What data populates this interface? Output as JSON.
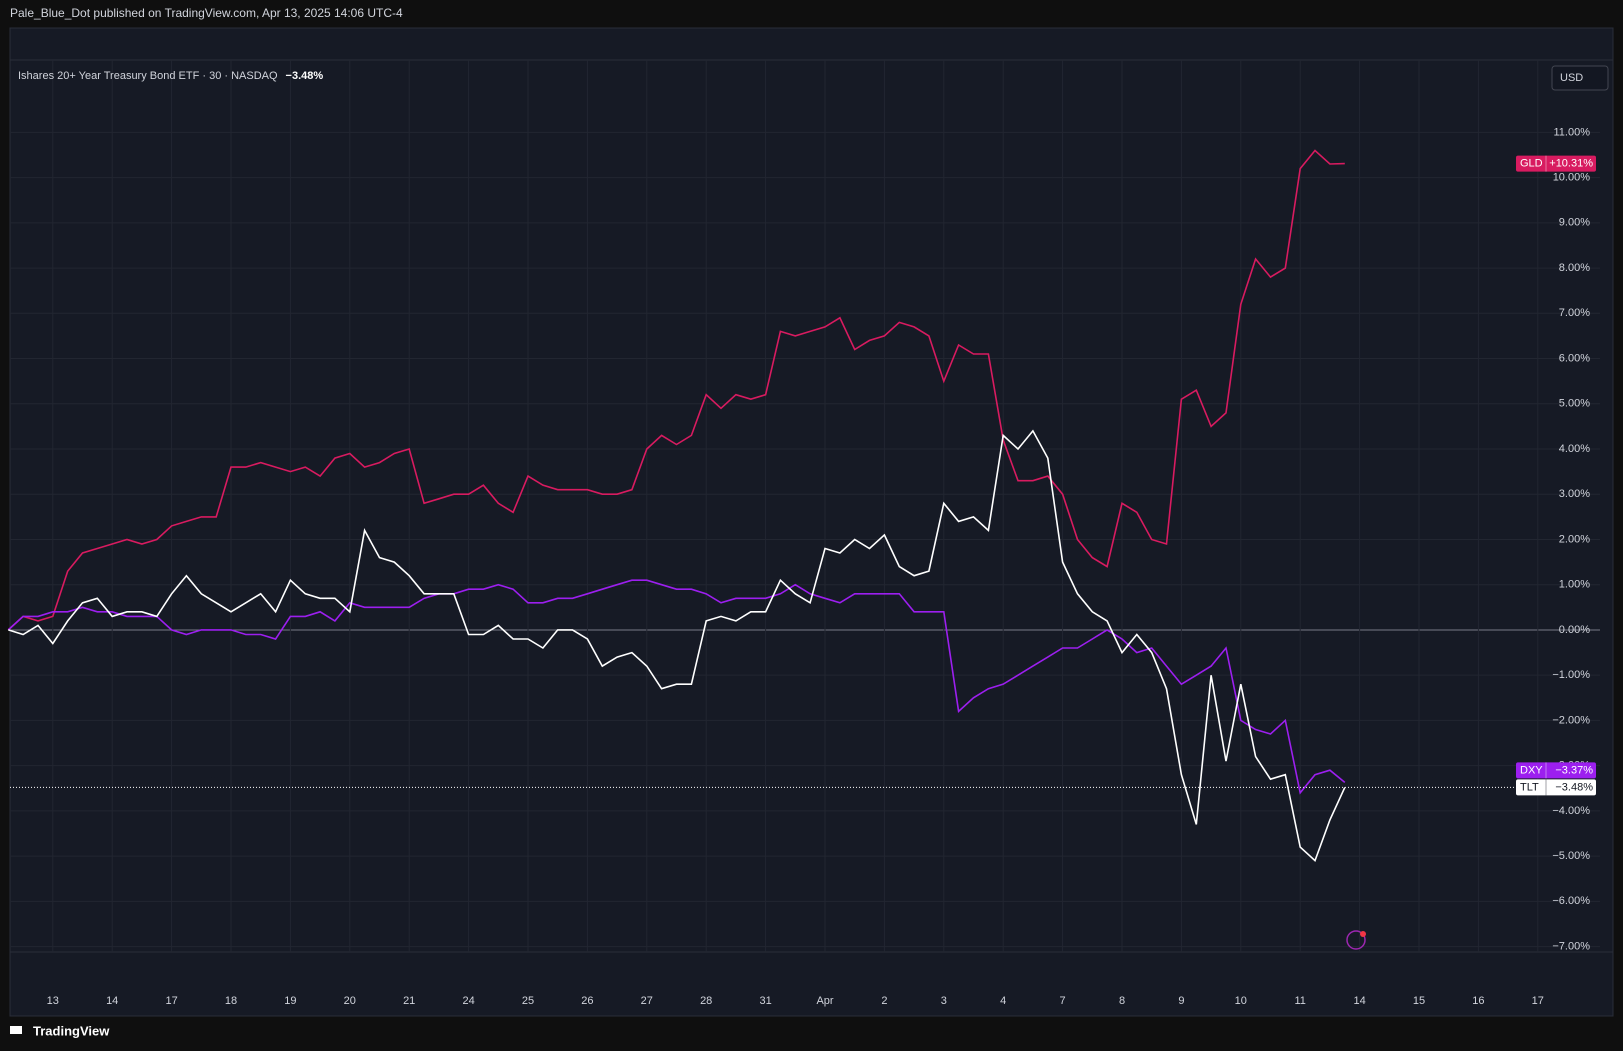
{
  "header": {
    "publisher": "Pale_Blue_Dot published on TradingView.com, Apr 13, 2025 14:06 UTC-4",
    "brand": "TradingView"
  },
  "chart_data": {
    "type": "line",
    "title": "Ishares 20+ Year Treasury Bond ETF · 30 · NASDAQ",
    "title_change": "−3.48%",
    "currency": "USD",
    "categories": [
      null,
      null,
      null,
      "13",
      null,
      null,
      null,
      "14",
      null,
      null,
      null,
      "17",
      null,
      null,
      null,
      "18",
      null,
      null,
      null,
      "19",
      null,
      null,
      null,
      "20",
      null,
      null,
      null,
      "21",
      null,
      null,
      null,
      "24",
      null,
      null,
      null,
      "25",
      null,
      null,
      null,
      "26",
      null,
      null,
      null,
      "27",
      null,
      null,
      null,
      "28",
      null,
      null,
      null,
      "31",
      null,
      null,
      null,
      "Apr",
      null,
      null,
      null,
      "2",
      null,
      null,
      null,
      "3",
      null,
      null,
      null,
      "4",
      null,
      null,
      null,
      "7",
      null,
      null,
      null,
      "8",
      null,
      null,
      null,
      "9",
      null,
      null,
      null,
      "10",
      null,
      null,
      null,
      "11",
      null,
      null,
      null,
      "14",
      null,
      null,
      null,
      "15",
      null,
      null,
      null,
      "16",
      null,
      null,
      null,
      "17",
      null
    ],
    "series": [
      {
        "name": "GLD",
        "color": "#d81b60",
        "tag_text": "#ffffff",
        "values": [
          0,
          0.3,
          0.2,
          0.3,
          1.3,
          1.7,
          1.8,
          1.9,
          2.0,
          1.9,
          2.0,
          2.3,
          2.4,
          2.5,
          2.5,
          3.6,
          3.6,
          3.7,
          3.6,
          3.5,
          3.6,
          3.4,
          3.8,
          3.9,
          3.6,
          3.7,
          3.9,
          4.0,
          2.8,
          2.9,
          3.0,
          3.0,
          3.2,
          2.8,
          2.6,
          3.4,
          3.2,
          3.1,
          3.1,
          3.1,
          3.0,
          3.0,
          3.1,
          4.0,
          4.3,
          4.1,
          4.3,
          5.2,
          4.9,
          5.2,
          5.1,
          5.2,
          6.6,
          6.5,
          6.6,
          6.7,
          6.9,
          6.2,
          6.4,
          6.5,
          6.8,
          6.7,
          6.5,
          5.5,
          6.3,
          6.1,
          6.1,
          4.2,
          3.3,
          3.3,
          3.4,
          3.0,
          2.0,
          1.6,
          1.4,
          2.8,
          2.6,
          2.0,
          1.9,
          5.1,
          5.3,
          4.5,
          4.8,
          7.2,
          8.2,
          7.8,
          8.0,
          10.2,
          10.6,
          10.3,
          10.31,
          null,
          null,
          null,
          null,
          null,
          null,
          null,
          null,
          null,
          null,
          null,
          null,
          null,
          null
        ],
        "value_labels": [
          null,
          null,
          null,
          null,
          null,
          null,
          null,
          null,
          null,
          null,
          null,
          null,
          null,
          null,
          null,
          null,
          null,
          null,
          null,
          null,
          null,
          null,
          null,
          null,
          null,
          null,
          null,
          null,
          null,
          null,
          null,
          null,
          null,
          null,
          null,
          null,
          null,
          null,
          null,
          null,
          null,
          null,
          null,
          null,
          null,
          null,
          null,
          null,
          null,
          null,
          null,
          null,
          null,
          null,
          null,
          null,
          null,
          null,
          null,
          null,
          null,
          null,
          null,
          null,
          null,
          null,
          null,
          null,
          null,
          null,
          null,
          null,
          null,
          null,
          null,
          null,
          null,
          null,
          null,
          null,
          null,
          null,
          null,
          null,
          null,
          null,
          null,
          null,
          null,
          null,
          "+10.31%",
          null,
          null,
          null,
          null,
          null,
          null,
          null,
          null,
          null,
          null,
          null,
          null,
          null,
          null
        ]
      },
      {
        "name": "DXY",
        "color": "#9c1fef",
        "tag_text": "#ffffff",
        "values": [
          0,
          0.3,
          0.3,
          0.4,
          0.4,
          0.5,
          0.4,
          0.4,
          0.3,
          0.3,
          0.3,
          0.0,
          -0.1,
          0.0,
          0.0,
          0.0,
          -0.1,
          -0.1,
          -0.2,
          0.3,
          0.3,
          0.4,
          0.2,
          0.6,
          0.5,
          0.5,
          0.5,
          0.5,
          0.7,
          0.8,
          0.8,
          0.9,
          0.9,
          1.0,
          0.9,
          0.6,
          0.6,
          0.7,
          0.7,
          0.8,
          0.9,
          1.0,
          1.1,
          1.1,
          1.0,
          0.9,
          0.9,
          0.8,
          0.6,
          0.7,
          0.7,
          0.7,
          0.8,
          1.0,
          0.8,
          0.7,
          0.6,
          0.8,
          0.8,
          0.8,
          0.8,
          0.4,
          0.4,
          0.4,
          -1.8,
          -1.5,
          -1.3,
          -1.2,
          -1.0,
          -0.8,
          -0.6,
          -0.4,
          -0.4,
          -0.2,
          0.0,
          -0.2,
          -0.5,
          -0.4,
          -0.8,
          -1.2,
          -1.0,
          -0.8,
          -0.4,
          -2.0,
          -2.2,
          -2.3,
          -2.0,
          -3.6,
          -3.2,
          -3.1,
          -3.37,
          null,
          null,
          null,
          null,
          null,
          null,
          null,
          null,
          null,
          null,
          null,
          null,
          null,
          null
        ],
        "value_labels": [
          null,
          null,
          null,
          null,
          null,
          null,
          null,
          null,
          null,
          null,
          null,
          null,
          null,
          null,
          null,
          null,
          null,
          null,
          null,
          null,
          null,
          null,
          null,
          null,
          null,
          null,
          null,
          null,
          null,
          null,
          null,
          null,
          null,
          null,
          null,
          null,
          null,
          null,
          null,
          null,
          null,
          null,
          null,
          null,
          null,
          null,
          null,
          null,
          null,
          null,
          null,
          null,
          null,
          null,
          null,
          null,
          null,
          null,
          null,
          null,
          null,
          null,
          null,
          null,
          null,
          null,
          null,
          null,
          null,
          null,
          null,
          null,
          null,
          null,
          null,
          null,
          null,
          null,
          null,
          null,
          null,
          null,
          null,
          null,
          null,
          null,
          null,
          null,
          null,
          null,
          "−3.37%",
          null,
          null,
          null,
          null,
          null,
          null,
          null,
          null,
          null,
          null,
          null,
          null,
          null,
          null
        ]
      },
      {
        "name": "TLT",
        "color": "#ffffff",
        "tag_text": "#131722",
        "values": [
          0,
          -0.1,
          0.1,
          -0.3,
          0.2,
          0.6,
          0.7,
          0.3,
          0.4,
          0.4,
          0.3,
          0.8,
          1.2,
          0.8,
          0.6,
          0.4,
          0.6,
          0.8,
          0.4,
          1.1,
          0.8,
          0.7,
          0.7,
          0.4,
          2.2,
          1.6,
          1.5,
          1.2,
          0.8,
          0.8,
          0.8,
          -0.1,
          -0.1,
          0.1,
          -0.2,
          -0.2,
          -0.4,
          0.0,
          0.0,
          -0.2,
          -0.8,
          -0.6,
          -0.5,
          -0.8,
          -1.3,
          -1.2,
          -1.2,
          0.2,
          0.3,
          0.2,
          0.4,
          0.4,
          1.1,
          0.8,
          0.6,
          1.8,
          1.7,
          2.0,
          1.8,
          2.1,
          1.4,
          1.2,
          1.3,
          2.8,
          2.4,
          2.5,
          2.2,
          4.3,
          4.0,
          4.4,
          3.8,
          1.5,
          0.8,
          0.4,
          0.2,
          -0.5,
          -0.1,
          -0.5,
          -1.3,
          -3.2,
          -4.3,
          -1.0,
          -2.9,
          -1.2,
          -2.8,
          -3.3,
          -3.2,
          -4.8,
          -5.1,
          -4.2,
          -3.48,
          null,
          null,
          null,
          null,
          null,
          null,
          null,
          null,
          null,
          null,
          null,
          null,
          null,
          null
        ],
        "value_labels": [
          null,
          null,
          null,
          null,
          null,
          null,
          null,
          null,
          null,
          null,
          null,
          null,
          null,
          null,
          null,
          null,
          null,
          null,
          null,
          null,
          null,
          null,
          null,
          null,
          null,
          null,
          null,
          null,
          null,
          null,
          null,
          null,
          null,
          null,
          null,
          null,
          null,
          null,
          null,
          null,
          null,
          null,
          null,
          null,
          null,
          null,
          null,
          null,
          null,
          null,
          null,
          null,
          null,
          null,
          null,
          null,
          null,
          null,
          null,
          null,
          null,
          null,
          null,
          null,
          null,
          null,
          null,
          null,
          null,
          null,
          null,
          null,
          null,
          null,
          null,
          null,
          null,
          null,
          null,
          null,
          null,
          null,
          null,
          null,
          null,
          null,
          null,
          null,
          null,
          null,
          "−3.48%",
          null,
          null,
          null,
          null,
          null,
          null,
          null,
          null,
          null,
          null,
          null,
          null,
          null,
          null
        ]
      }
    ],
    "ylim": [
      -7.12,
      12.6
    ],
    "yticks": [
      {
        "value": 11,
        "label": "11.00%"
      },
      {
        "value": 10,
        "label": "10.00%"
      },
      {
        "value": 9,
        "label": "9.00%"
      },
      {
        "value": 8,
        "label": "8.00%"
      },
      {
        "value": 7,
        "label": "7.00%"
      },
      {
        "value": 6,
        "label": "6.00%"
      },
      {
        "value": 5,
        "label": "5.00%"
      },
      {
        "value": 4,
        "label": "4.00%"
      },
      {
        "value": 3,
        "label": "3.00%"
      },
      {
        "value": 2,
        "label": "2.00%"
      },
      {
        "value": 1,
        "label": "1.00%"
      },
      {
        "value": 0,
        "label": "0.00%"
      },
      {
        "value": -1,
        "label": "−1.00%"
      },
      {
        "value": -2,
        "label": "−2.00%"
      },
      {
        "value": -3,
        "label": "−3.00%"
      },
      {
        "value": -4,
        "label": "−4.00%"
      },
      {
        "value": -5,
        "label": "−5.00%"
      },
      {
        "value": -6,
        "label": "−6.00%"
      },
      {
        "value": -7,
        "label": "−7.00%"
      }
    ],
    "grid": true
  }
}
